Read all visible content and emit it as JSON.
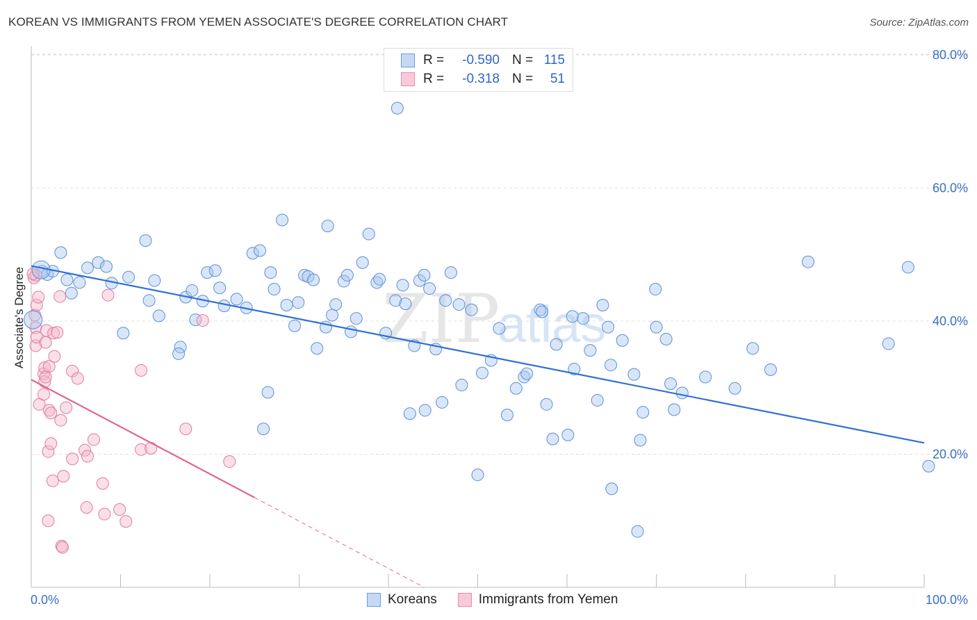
{
  "title": "KOREAN VS IMMIGRANTS FROM YEMEN ASSOCIATE'S DEGREE CORRELATION CHART",
  "source": "Source: ZipAtlas.com",
  "watermark": {
    "text_zip": "ZIP",
    "text_atlas": "atlas"
  },
  "legend": {
    "r_label": "R =",
    "n_label": "N =",
    "rows": [
      {
        "r": "-0.590",
        "n": "115",
        "color": "#6b9be0",
        "fill": "#c5d9f5"
      },
      {
        "r": "-0.318",
        "n": "51",
        "color": "#e88aa8",
        "fill": "#f8cad8"
      }
    ]
  },
  "bottom_legend": [
    {
      "label": "Koreans",
      "color": "#6b9be0",
      "fill": "#c5d9f5"
    },
    {
      "label": "Immigrants from Yemen",
      "color": "#e88aa8",
      "fill": "#f8cad8"
    }
  ],
  "chart_data": {
    "type": "scatter",
    "xlabel": "",
    "ylabel": "Associate's Degree",
    "xlim": [
      0,
      100
    ],
    "ylim": [
      0,
      82
    ],
    "x_tick_labels": [
      "0.0%",
      "100.0%"
    ],
    "y_ticks": [
      20,
      40,
      60,
      80
    ],
    "y_tick_labels": [
      "20.0%",
      "40.0%",
      "60.0%",
      "80.0%"
    ],
    "grid": true,
    "series": [
      {
        "name": "Koreans",
        "color": "#5b8fd8",
        "fill": "rgba(170,200,240,0.45)",
        "points": [
          [
            1.2,
            47.5
          ],
          [
            1.8,
            47
          ],
          [
            2.4,
            47.5
          ],
          [
            4,
            46.2
          ],
          [
            3.3,
            50.3
          ],
          [
            5.4,
            45.8
          ],
          [
            6.3,
            48
          ],
          [
            7.5,
            48.8
          ],
          [
            8.4,
            48.2
          ],
          [
            9,
            45.7
          ],
          [
            4.5,
            44.2
          ],
          [
            10.9,
            46.6
          ],
          [
            13.8,
            46.1
          ],
          [
            12.8,
            52.1
          ],
          [
            10.3,
            38.2
          ],
          [
            13.2,
            43.1
          ],
          [
            14.3,
            40.8
          ],
          [
            16.7,
            36.1
          ],
          [
            16.5,
            35.1
          ],
          [
            17.3,
            43.6
          ],
          [
            18,
            44.6
          ],
          [
            18.4,
            40.2
          ],
          [
            19.2,
            43
          ],
          [
            19.7,
            47.3
          ],
          [
            20.6,
            47.6
          ],
          [
            21.1,
            45
          ],
          [
            21.6,
            42.3
          ],
          [
            23,
            43.3
          ],
          [
            24.1,
            42
          ],
          [
            24.8,
            50.2
          ],
          [
            25.6,
            50.6
          ],
          [
            26,
            23.8
          ],
          [
            26.5,
            29.3
          ],
          [
            26.8,
            47.3
          ],
          [
            27.2,
            44.8
          ],
          [
            28.1,
            55.2
          ],
          [
            28.6,
            42.4
          ],
          [
            29.5,
            39.3
          ],
          [
            29.9,
            42.8
          ],
          [
            30.6,
            46.9
          ],
          [
            31,
            46.7
          ],
          [
            31.6,
            46.2
          ],
          [
            32,
            35.9
          ],
          [
            33,
            39.1
          ],
          [
            33.2,
            54.3
          ],
          [
            33.7,
            40.9
          ],
          [
            34.1,
            42.5
          ],
          [
            35,
            46
          ],
          [
            35.4,
            46.9
          ],
          [
            35.8,
            38.4
          ],
          [
            36.4,
            40.4
          ],
          [
            37.1,
            48.8
          ],
          [
            37.8,
            53.1
          ],
          [
            38.7,
            45.8
          ],
          [
            39,
            46.3
          ],
          [
            39.7,
            38.2
          ],
          [
            40.8,
            43.1
          ],
          [
            41,
            72
          ],
          [
            41.6,
            45.4
          ],
          [
            41.9,
            42.6
          ],
          [
            42.4,
            26.1
          ],
          [
            42.9,
            36.3
          ],
          [
            43.5,
            46.1
          ],
          [
            44,
            46.9
          ],
          [
            44.6,
            44.9
          ],
          [
            45.3,
            35.8
          ],
          [
            46,
            27.8
          ],
          [
            46.4,
            43.1
          ],
          [
            47,
            47.3
          ],
          [
            47.9,
            42.5
          ],
          [
            48.2,
            30.4
          ],
          [
            49.3,
            41.7
          ],
          [
            50,
            16.9
          ],
          [
            50.5,
            32.2
          ],
          [
            51.5,
            34.1
          ],
          [
            52.4,
            38.9
          ],
          [
            53.3,
            25.9
          ],
          [
            54.3,
            29.9
          ],
          [
            55.2,
            31.6
          ],
          [
            55.5,
            32.1
          ],
          [
            57,
            41.7
          ],
          [
            57.2,
            41.4
          ],
          [
            57.7,
            27.5
          ],
          [
            58.8,
            36.5
          ],
          [
            60.1,
            22.9
          ],
          [
            60.6,
            40.7
          ],
          [
            60.8,
            32.8
          ],
          [
            61.8,
            40.4
          ],
          [
            62.6,
            35.6
          ],
          [
            64,
            42.4
          ],
          [
            64.6,
            39.1
          ],
          [
            64.9,
            33.4
          ],
          [
            65,
            14.8
          ],
          [
            66.2,
            37.1
          ],
          [
            67.5,
            32
          ],
          [
            67.9,
            8.4
          ],
          [
            68.2,
            22.1
          ],
          [
            68.5,
            26.3
          ],
          [
            70,
            39.1
          ],
          [
            71.1,
            37.3
          ],
          [
            71.6,
            30.6
          ],
          [
            72,
            26.7
          ],
          [
            72.9,
            29.2
          ],
          [
            78.8,
            29.9
          ],
          [
            80.8,
            35.9
          ],
          [
            82.8,
            32.7
          ],
          [
            96,
            36.6
          ],
          [
            100.5,
            18.2
          ],
          [
            98.2,
            48.1
          ],
          [
            87,
            48.9
          ],
          [
            58.4,
            22.3
          ],
          [
            75.5,
            31.6
          ],
          [
            69.9,
            44.8
          ],
          [
            63.4,
            28.1
          ],
          [
            44.1,
            26.6
          ]
        ]
      },
      {
        "name": "Immigrants from Yemen",
        "color": "#e07ca0",
        "fill": "rgba(245,185,205,0.45)",
        "points": [
          [
            0.3,
            46.5
          ],
          [
            0.5,
            46.9
          ],
          [
            0.4,
            40.9
          ],
          [
            0.5,
            39
          ],
          [
            0.5,
            36.3
          ],
          [
            0.6,
            42.4
          ],
          [
            0.6,
            37.6
          ],
          [
            0.8,
            43.6
          ],
          [
            0.9,
            27.5
          ],
          [
            1.4,
            32.1
          ],
          [
            1.4,
            29
          ],
          [
            1.5,
            33
          ],
          [
            1.5,
            30.9
          ],
          [
            1.6,
            36.8
          ],
          [
            1.6,
            31.6
          ],
          [
            1.7,
            38.6
          ],
          [
            1.9,
            10
          ],
          [
            1.9,
            20.4
          ],
          [
            2,
            33.2
          ],
          [
            2,
            26.6
          ],
          [
            2.2,
            26.2
          ],
          [
            2.2,
            21.6
          ],
          [
            2.4,
            16
          ],
          [
            2.5,
            38.2
          ],
          [
            2.6,
            34.7
          ],
          [
            2.9,
            38.3
          ],
          [
            3.2,
            43.7
          ],
          [
            3.3,
            25.1
          ],
          [
            3.4,
            6.2
          ],
          [
            3.5,
            6
          ],
          [
            3.6,
            16.7
          ],
          [
            3.9,
            27
          ],
          [
            4.6,
            19.3
          ],
          [
            4.6,
            32.5
          ],
          [
            5.2,
            31.4
          ],
          [
            6,
            20.6
          ],
          [
            6.2,
            12
          ],
          [
            6.3,
            19.7
          ],
          [
            7,
            22.2
          ],
          [
            8,
            15.6
          ],
          [
            8.2,
            11
          ],
          [
            8.6,
            43.9
          ],
          [
            9.9,
            11.7
          ],
          [
            10.6,
            9.9
          ],
          [
            12.3,
            32.6
          ],
          [
            12.3,
            20.7
          ],
          [
            13.4,
            20.9
          ],
          [
            17.3,
            23.8
          ],
          [
            19.2,
            40.1
          ],
          [
            22.2,
            18.9
          ],
          [
            0.2,
            47.1
          ]
        ]
      }
    ],
    "trend_lines": [
      {
        "series": "Koreans",
        "x0": 0,
        "y0": 48.3,
        "x1": 100,
        "y1": 21.7,
        "color": "#2f6fd4"
      },
      {
        "series": "Immigrants from Yemen",
        "x0": 0,
        "y0": 31.2,
        "x1": 25,
        "y1": 13.5,
        "dash_to_x": 44,
        "dash_to_y": 0,
        "color": "#e06593"
      }
    ]
  }
}
